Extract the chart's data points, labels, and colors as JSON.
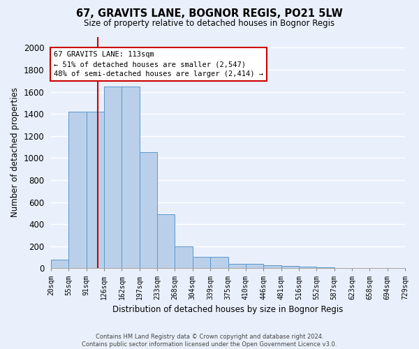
{
  "title1": "67, GRAVITS LANE, BOGNOR REGIS, PO21 5LW",
  "title2": "Size of property relative to detached houses in Bognor Regis",
  "xlabel": "Distribution of detached houses by size in Bognor Regis",
  "ylabel": "Number of detached properties",
  "footnote": "Contains HM Land Registry data © Crown copyright and database right 2024.\nContains public sector information licensed under the Open Government Licence v3.0.",
  "bin_labels": [
    "20sqm",
    "55sqm",
    "91sqm",
    "126sqm",
    "162sqm",
    "197sqm",
    "233sqm",
    "268sqm",
    "304sqm",
    "339sqm",
    "375sqm",
    "410sqm",
    "446sqm",
    "481sqm",
    "516sqm",
    "552sqm",
    "587sqm",
    "623sqm",
    "658sqm",
    "694sqm",
    "729sqm"
  ],
  "bar_values": [
    80,
    1420,
    1420,
    1650,
    1650,
    1050,
    490,
    200,
    105,
    105,
    40,
    40,
    25,
    20,
    15,
    10,
    0,
    0,
    0,
    0
  ],
  "bar_color": "#bad0ea",
  "bar_edge_color": "#5a96cc",
  "bg_color": "#eaf0fb",
  "grid_color": "#ffffff",
  "vline_color": "#cc0000",
  "annotation_text": "67 GRAVITS LANE: 113sqm\n← 51% of detached houses are smaller (2,547)\n48% of semi-detached houses are larger (2,414) →",
  "annotation_box_color": "#ffffff",
  "annotation_box_edge": "#cc0000",
  "ylim": [
    0,
    2100
  ],
  "yticks": [
    0,
    200,
    400,
    600,
    800,
    1000,
    1200,
    1400,
    1600,
    1800,
    2000
  ]
}
